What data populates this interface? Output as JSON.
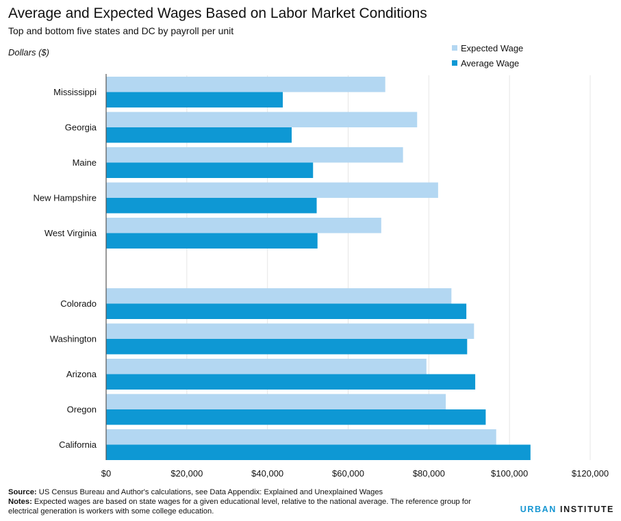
{
  "header": {
    "title": "Average and Expected Wages Based on Labor Market Conditions",
    "subtitle": "Top and bottom five states and DC by payroll per unit",
    "unit_label": "Dollars ($)"
  },
  "legend": {
    "expected_label": "Expected Wage",
    "average_label": "Average Wage"
  },
  "colors": {
    "expected": "#b3d7f2",
    "average": "#0e98d4",
    "grid": "#e6e6e6",
    "axis": "#555555"
  },
  "chart_data": {
    "type": "bar",
    "orientation": "horizontal",
    "title": "Average and Expected Wages Based on Labor Market Conditions",
    "subtitle": "Top and bottom five states and DC by payroll per unit",
    "ylabel": "Dollars ($)",
    "categories": [
      "Mississippi",
      "Georgia",
      "Maine",
      "New Hampshire",
      "West Virginia",
      "",
      "Colorado",
      "Washington",
      "Arizona",
      "Oregon",
      "California"
    ],
    "series": [
      {
        "name": "Expected Wage",
        "values": [
          69200,
          77100,
          73600,
          82300,
          68200,
          null,
          85600,
          91200,
          79400,
          84200,
          96700
        ]
      },
      {
        "name": "Average Wage",
        "values": [
          43800,
          46000,
          51300,
          52200,
          52400,
          null,
          89300,
          89500,
          91500,
          94100,
          105200
        ]
      }
    ],
    "xlim": [
      0,
      120000
    ],
    "xticks": [
      0,
      20000,
      40000,
      60000,
      80000,
      100000,
      120000
    ],
    "xtick_labels": [
      "$0",
      "$20,000",
      "$40,000",
      "$60,000",
      "$80,000",
      "$100,000",
      "$120,000"
    ],
    "grid": true,
    "legend_position": "top-right"
  },
  "footer": {
    "source_label": "Source:",
    "source_text": "US Census Bureau and Author's calculations, see Data Appendix: Explained and Unexplained Wages",
    "notes_label": "Notes:",
    "notes_text": "Expected wages are based on state wages for a given educational level, relative to the national average.  The reference group for electrical generation is workers with some college education.",
    "brand_urban": "URBAN",
    "brand_institute": " INSTITUTE"
  }
}
